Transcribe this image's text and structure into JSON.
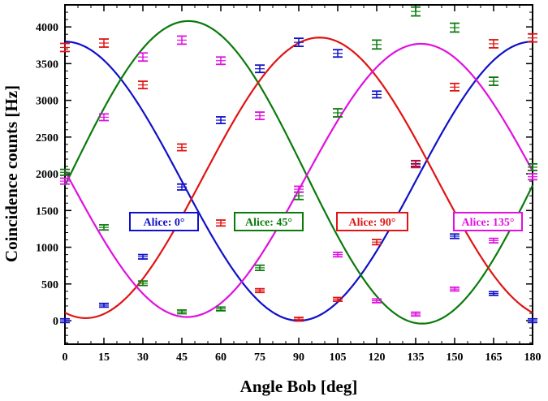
{
  "chart_data": {
    "type": "line",
    "title": "",
    "xlabel": "Angle Bob [deg]",
    "ylabel": "Coincidence counts [Hz]",
    "xlim": [
      0,
      180
    ],
    "ylim": [
      -320,
      4300
    ],
    "xticks": [
      0,
      15,
      30,
      45,
      60,
      75,
      90,
      105,
      120,
      135,
      150,
      165,
      180
    ],
    "yticks": [
      0,
      500,
      1000,
      1500,
      2000,
      2500,
      3000,
      3500,
      4000
    ],
    "grid": false,
    "x": [
      0,
      15,
      30,
      45,
      60,
      75,
      90,
      105,
      120,
      135,
      150,
      165,
      180
    ],
    "series": [
      {
        "name": "Alice: 0°",
        "color": "#1010c8",
        "values": [
          0,
          210,
          870,
          1820,
          2730,
          3430,
          3790,
          3640,
          3080,
          2140,
          1150,
          370,
          0
        ],
        "errors": [
          25,
          25,
          30,
          40,
          45,
          50,
          55,
          50,
          45,
          40,
          30,
          25,
          25
        ],
        "fit": {
          "amp": 1900,
          "offset": 1900,
          "phase_deg": 90
        }
      },
      {
        "name": "Alice: 45°",
        "color": "#0a7a0a",
        "values": [
          2020,
          1270,
          510,
          120,
          160,
          720,
          1700,
          2830,
          3760,
          4210,
          3990,
          3260,
          2090
        ],
        "errors": [
          40,
          35,
          30,
          25,
          25,
          35,
          50,
          55,
          60,
          60,
          60,
          55,
          45
        ],
        "fit": {
          "amp": 2060,
          "offset": 2020,
          "phase_deg": 137.5
        }
      },
      {
        "name": "Alice: 90°",
        "color": "#e01414",
        "values": [
          3720,
          3780,
          3210,
          2360,
          1330,
          410,
          20,
          290,
          1070,
          2130,
          3180,
          3770,
          3850
        ],
        "errors": [
          55,
          55,
          50,
          45,
          40,
          25,
          25,
          25,
          35,
          45,
          50,
          55,
          55
        ],
        "fit": {
          "amp": 1910,
          "offset": 1945,
          "phase_deg": 8
        }
      },
      {
        "name": "Alice: 135°",
        "color": "#e010e0",
        "values": [
          1900,
          2770,
          3590,
          3820,
          3540,
          2790,
          1790,
          900,
          270,
          90,
          430,
          1090,
          1960
        ],
        "errors": [
          40,
          45,
          55,
          55,
          50,
          50,
          40,
          30,
          25,
          25,
          25,
          30,
          40
        ],
        "fit": {
          "amp": 1860,
          "offset": 1910,
          "phase_deg": 47
        }
      }
    ]
  }
}
